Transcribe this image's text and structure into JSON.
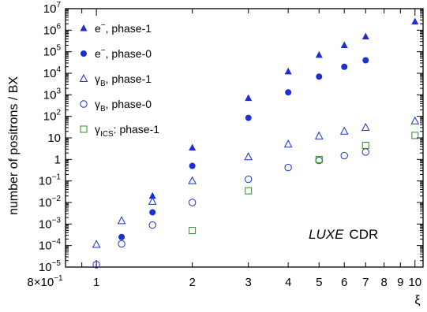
{
  "chart_data": {
    "type": "scatter",
    "ylabel": "number of positrons / BX",
    "xlabel": "ξ",
    "x_scale": "log",
    "y_scale": "log",
    "xlim": [
      0.8,
      10.6
    ],
    "ylim": [
      1e-05,
      10000000
    ],
    "x_tick_labels": [
      {
        "x": 0.8,
        "m": "8×10",
        "e": "−1"
      },
      {
        "x": 1,
        "m": "1"
      },
      {
        "x": 2,
        "m": "2"
      },
      {
        "x": 3,
        "m": "3"
      },
      {
        "x": 4,
        "m": "4"
      },
      {
        "x": 5,
        "m": "5"
      },
      {
        "x": 6,
        "m": "6"
      },
      {
        "x": 7,
        "m": "7"
      },
      {
        "x": 8,
        "m": "8"
      },
      {
        "x": 9,
        "m": "9"
      },
      {
        "x": 10,
        "m": "10"
      }
    ],
    "y_tick_labels": [
      {
        "y": 1e-05,
        "m": "10",
        "e": "−5"
      },
      {
        "y": 0.0001,
        "m": "10",
        "e": "−4"
      },
      {
        "y": 0.001,
        "m": "10",
        "e": "−3"
      },
      {
        "y": 0.01,
        "m": "10",
        "e": "−2"
      },
      {
        "y": 0.1,
        "m": "10",
        "e": "−1"
      },
      {
        "y": 1,
        "m": "1"
      },
      {
        "y": 10,
        "m": "10"
      },
      {
        "y": 100,
        "m": "10",
        "e": "2"
      },
      {
        "y": 1000,
        "m": "10",
        "e": "3"
      },
      {
        "y": 10000,
        "m": "10",
        "e": "4"
      },
      {
        "y": 100000,
        "m": "10",
        "e": "5"
      },
      {
        "y": 1000000,
        "m": "10",
        "e": "6"
      },
      {
        "y": 10000000,
        "m": "10",
        "e": "7"
      }
    ],
    "series": [
      {
        "name": "e−, phase-1",
        "legend_main": "e",
        "legend_sup": "−",
        "legend_sub": "",
        "legend_tail": ", phase-1",
        "marker": "triangle-filled",
        "color": "#1b2fd6",
        "x": [
          1.5,
          2,
          3,
          4,
          5,
          6,
          7,
          10
        ],
        "y": [
          0.02,
          3.5,
          700,
          12000,
          70000,
          200000,
          500000,
          2500000
        ]
      },
      {
        "name": "e−, phase-0",
        "legend_main": "e",
        "legend_sup": "−",
        "legend_sub": "",
        "legend_tail": ", phase-0",
        "marker": "circle-filled",
        "color": "#1b2fd6",
        "x": [
          1.2,
          1.5,
          2,
          3,
          4,
          5,
          6,
          7
        ],
        "y": [
          0.00025,
          0.0035,
          0.5,
          85,
          1300,
          7000,
          20000,
          40000
        ]
      },
      {
        "name": "γB, phase-1",
        "legend_main": "γ",
        "legend_sup": "",
        "legend_sub": "B",
        "legend_tail": ", phase-1",
        "marker": "triangle-open",
        "color": "#1b2fd6",
        "x": [
          1,
          1.2,
          1.5,
          2,
          3,
          4,
          5,
          6,
          7,
          10
        ],
        "y": [
          0.00011,
          0.0014,
          0.011,
          0.1,
          1.3,
          5,
          12,
          20,
          30,
          60
        ]
      },
      {
        "name": "γB, phase-0",
        "legend_main": "γ",
        "legend_sup": "",
        "legend_sub": "B",
        "legend_tail": ", phase-0",
        "marker": "circle-open",
        "color": "#1b2fd6",
        "x": [
          1,
          1.2,
          1.5,
          2,
          3,
          4,
          5,
          6,
          7
        ],
        "y": [
          1.3e-05,
          0.00012,
          0.0009,
          0.01,
          0.12,
          0.42,
          0.9,
          1.5,
          2.2
        ]
      },
      {
        "name": "γICS: phase-1",
        "legend_main": "γ",
        "legend_sup": "",
        "legend_sub": "ICS",
        "legend_tail": ": phase-1",
        "marker": "square-open",
        "color": "#2e8b2e",
        "x": [
          2,
          3,
          5,
          7,
          10
        ],
        "y": [
          0.0005,
          0.035,
          1,
          4.5,
          13
        ]
      }
    ],
    "legend_position": "top-left",
    "annotation": {
      "italic": "LUXE",
      "text": "CDR"
    }
  }
}
